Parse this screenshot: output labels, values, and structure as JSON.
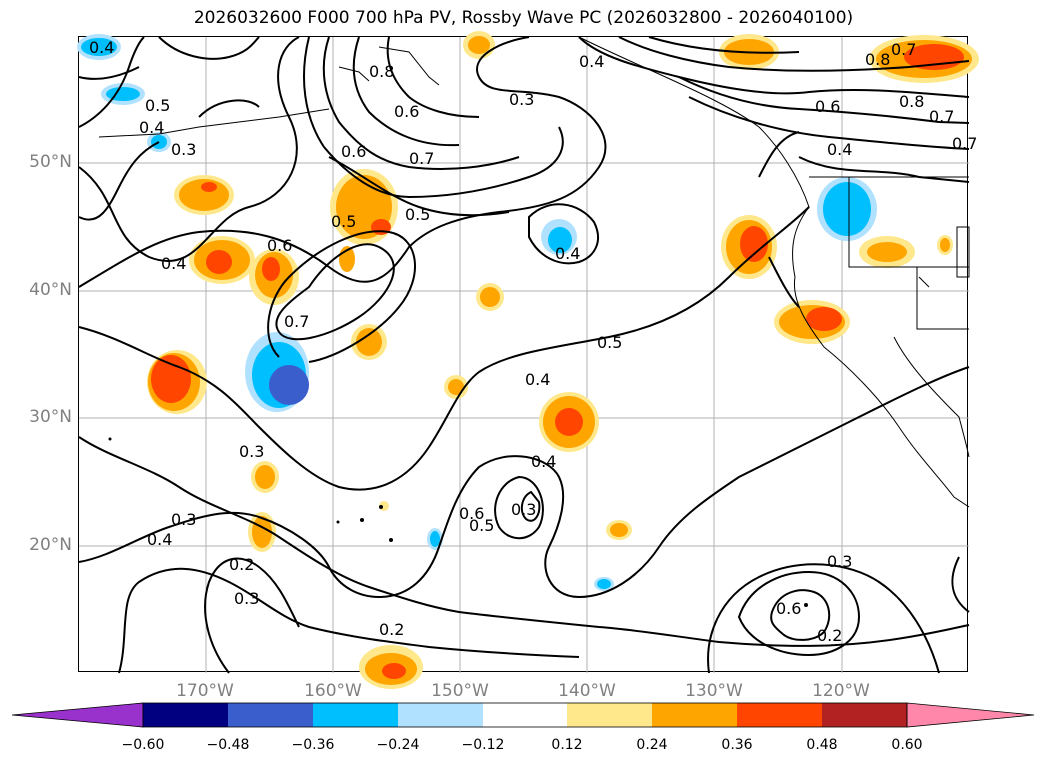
{
  "title": "2026032600 F000 700 hPa PV, Rossby Wave PC (2026032800 - 2026040100)",
  "latitude_labels": [
    "50°N",
    "40°N",
    "30°N",
    "20°N"
  ],
  "longitude_labels": [
    "170°W",
    "160°W",
    "150°W",
    "140°W",
    "130°W",
    "120°W"
  ],
  "contour_labels": [
    "0.4",
    "0.5",
    "0.4",
    "0.3",
    "0.4",
    "0.6",
    "0.7",
    "0.5",
    "0.5",
    "0.6",
    "0.7",
    "0.3",
    "0.4",
    "0.4",
    "0.5",
    "0.4",
    "0.6",
    "0.5",
    "0.3",
    "0.4",
    "0.3",
    "0.2",
    "0.3",
    "0.2",
    "0.4",
    "0.3",
    "0.2",
    "0.6",
    "0.7",
    "0.8",
    "0.6",
    "0.8",
    "0.7",
    "0.7",
    "0.6",
    "0.4",
    "0.3",
    "0.8"
  ],
  "colorbar": {
    "ticks": [
      "−0.60",
      "−0.48",
      "−0.36",
      "−0.24",
      "−0.12",
      "0.12",
      "0.24",
      "0.36",
      "0.48",
      "0.60"
    ],
    "colors": [
      "#9932cc",
      "#000080",
      "#3a5fcd",
      "#00bfff",
      "#b0e2ff",
      "#ffffff",
      "#ffe88c",
      "#ffa500",
      "#ff4500",
      "#b22222",
      "#ff88aa"
    ]
  }
}
